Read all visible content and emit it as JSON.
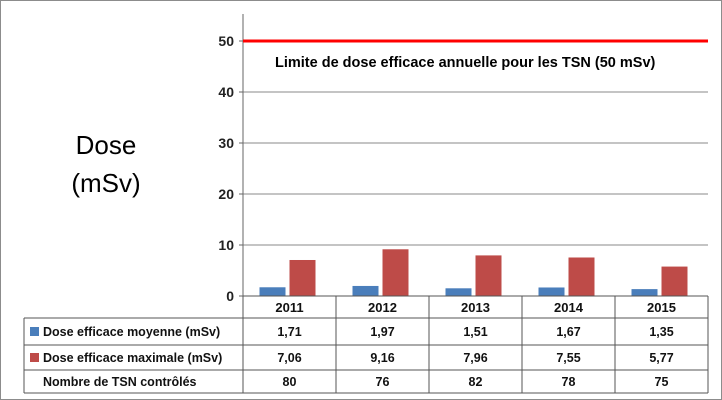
{
  "chart_data": {
    "type": "bar",
    "categories": [
      "2011",
      "2012",
      "2013",
      "2014",
      "2015"
    ],
    "series": [
      {
        "name": "Dose efficace moyenne (mSv)",
        "values": [
          1.71,
          1.97,
          1.51,
          1.67,
          1.35
        ],
        "labels": [
          "1,71",
          "1,97",
          "1,51",
          "1,67",
          "1,35"
        ],
        "color": "#4a7ebb"
      },
      {
        "name": "Dose efficace maximale (mSv)",
        "values": [
          7.06,
          9.16,
          7.96,
          7.55,
          5.77
        ],
        "labels": [
          "7,06",
          "9,16",
          "7,96",
          "7,55",
          "5,77"
        ],
        "color": "#be4b48"
      }
    ],
    "table_extra_row": {
      "name": "Nombre de TSN contrôlés",
      "values": [
        "80",
        "76",
        "82",
        "78",
        "75"
      ]
    },
    "ylabel_line1": "Dose",
    "ylabel_line2": "(mSv)",
    "ylim": [
      0,
      50
    ],
    "yticks": [
      0,
      10,
      20,
      30,
      40,
      50
    ],
    "grid": true,
    "reference_line": {
      "value": 50,
      "label": "Limite de dose efficace annuelle pour les TSN (50 mSv)",
      "color": "#ff0000"
    }
  }
}
